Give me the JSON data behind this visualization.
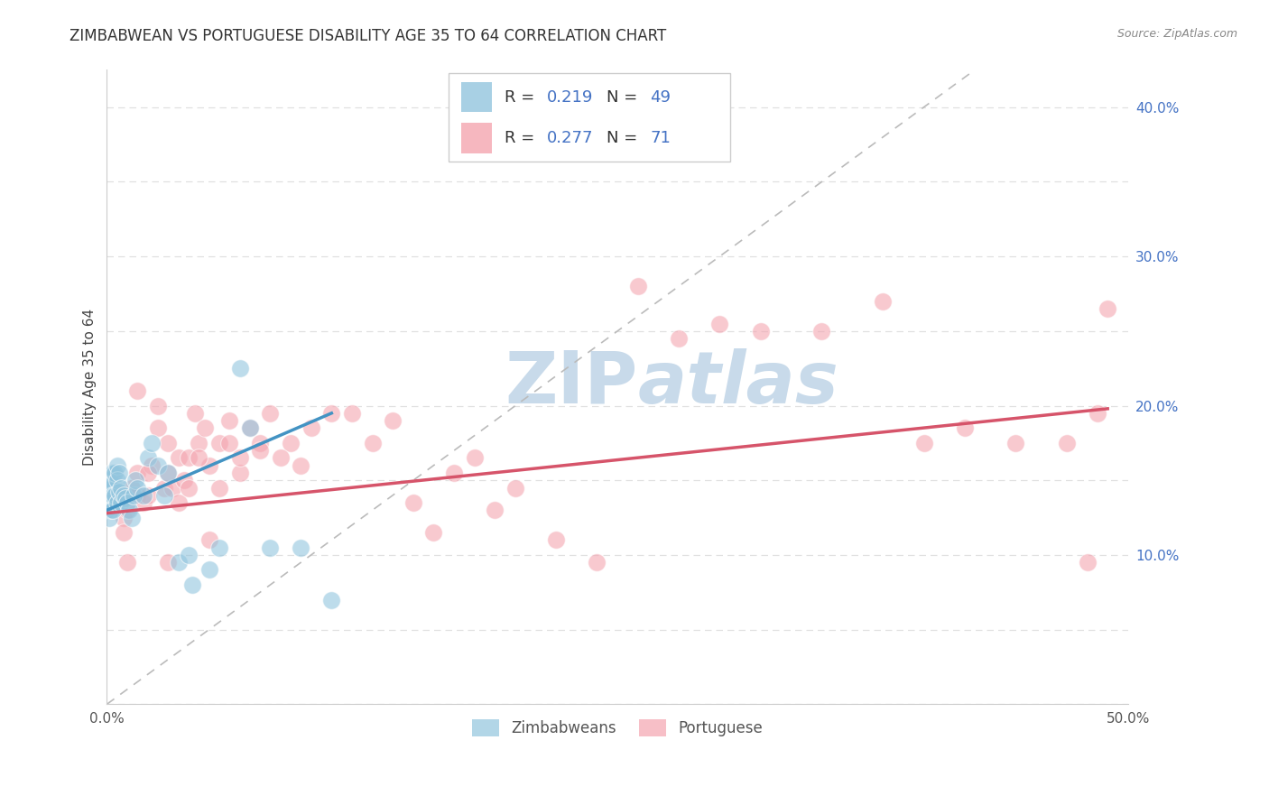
{
  "title": "ZIMBABWEAN VS PORTUGUESE DISABILITY AGE 35 TO 64 CORRELATION CHART",
  "source": "Source: ZipAtlas.com",
  "ylabel": "Disability Age 35 to 64",
  "xlim": [
    0.0,
    0.5
  ],
  "ylim": [
    0.0,
    0.425
  ],
  "yticks_right": [
    0.1,
    0.2,
    0.3,
    0.4
  ],
  "ytick_right_labels": [
    "10.0%",
    "20.0%",
    "30.0%",
    "40.0%"
  ],
  "background_color": "#ffffff",
  "grid_color": "#e0e0e0",
  "blue_color": "#92c5de",
  "pink_color": "#f4a5b0",
  "blue_line_color": "#4393c3",
  "pink_line_color": "#d6546a",
  "dashed_line_color": "#bbbbbb",
  "legend_R1": "R = 0.219",
  "legend_N1": "N = 49",
  "legend_R2": "R = 0.277",
  "legend_N2": "N = 71",
  "watermark_color": "#c8daea",
  "title_fontsize": 12,
  "axis_label_fontsize": 11,
  "tick_fontsize": 11,
  "zimbabwean_x": [
    0.0,
    0.0,
    0.0,
    0.0,
    0.001,
    0.001,
    0.001,
    0.001,
    0.002,
    0.002,
    0.002,
    0.002,
    0.003,
    0.003,
    0.003,
    0.003,
    0.004,
    0.004,
    0.005,
    0.005,
    0.005,
    0.006,
    0.006,
    0.007,
    0.007,
    0.008,
    0.009,
    0.01,
    0.011,
    0.012,
    0.013,
    0.014,
    0.015,
    0.018,
    0.02,
    0.022,
    0.025,
    0.028,
    0.03,
    0.035,
    0.04,
    0.042,
    0.05,
    0.055,
    0.065,
    0.07,
    0.08,
    0.095,
    0.11
  ],
  "zimbabwean_y": [
    0.145,
    0.14,
    0.135,
    0.13,
    0.15,
    0.145,
    0.135,
    0.125,
    0.155,
    0.148,
    0.14,
    0.13,
    0.155,
    0.148,
    0.14,
    0.13,
    0.155,
    0.14,
    0.16,
    0.15,
    0.135,
    0.155,
    0.142,
    0.145,
    0.135,
    0.14,
    0.138,
    0.135,
    0.13,
    0.125,
    0.14,
    0.15,
    0.145,
    0.14,
    0.165,
    0.175,
    0.16,
    0.14,
    0.155,
    0.095,
    0.1,
    0.08,
    0.09,
    0.105,
    0.225,
    0.185,
    0.105,
    0.105,
    0.07
  ],
  "portuguese_x": [
    0.0,
    0.005,
    0.008,
    0.01,
    0.012,
    0.015,
    0.015,
    0.018,
    0.02,
    0.022,
    0.025,
    0.028,
    0.03,
    0.03,
    0.032,
    0.035,
    0.038,
    0.04,
    0.043,
    0.045,
    0.048,
    0.05,
    0.055,
    0.06,
    0.065,
    0.07,
    0.075,
    0.08,
    0.09,
    0.1,
    0.11,
    0.12,
    0.13,
    0.14,
    0.15,
    0.16,
    0.17,
    0.18,
    0.19,
    0.2,
    0.22,
    0.24,
    0.26,
    0.28,
    0.3,
    0.32,
    0.35,
    0.38,
    0.4,
    0.42,
    0.445,
    0.47,
    0.48,
    0.49,
    0.485,
    0.01,
    0.008,
    0.015,
    0.02,
    0.025,
    0.03,
    0.035,
    0.04,
    0.045,
    0.05,
    0.055,
    0.06,
    0.065,
    0.075,
    0.085,
    0.095
  ],
  "portuguese_y": [
    0.13,
    0.14,
    0.125,
    0.13,
    0.145,
    0.14,
    0.155,
    0.135,
    0.14,
    0.16,
    0.185,
    0.145,
    0.155,
    0.175,
    0.145,
    0.165,
    0.15,
    0.165,
    0.195,
    0.175,
    0.185,
    0.16,
    0.175,
    0.19,
    0.155,
    0.185,
    0.175,
    0.195,
    0.175,
    0.185,
    0.195,
    0.195,
    0.175,
    0.19,
    0.135,
    0.115,
    0.155,
    0.165,
    0.13,
    0.145,
    0.11,
    0.095,
    0.28,
    0.245,
    0.255,
    0.25,
    0.25,
    0.27,
    0.175,
    0.185,
    0.175,
    0.175,
    0.095,
    0.265,
    0.195,
    0.095,
    0.115,
    0.21,
    0.155,
    0.2,
    0.095,
    0.135,
    0.145,
    0.165,
    0.11,
    0.145,
    0.175,
    0.165,
    0.17,
    0.165,
    0.16
  ],
  "blue_line_x": [
    0.0,
    0.11
  ],
  "blue_line_y": [
    0.13,
    0.195
  ],
  "pink_line_x": [
    0.0,
    0.49
  ],
  "pink_line_y": [
    0.128,
    0.198
  ]
}
